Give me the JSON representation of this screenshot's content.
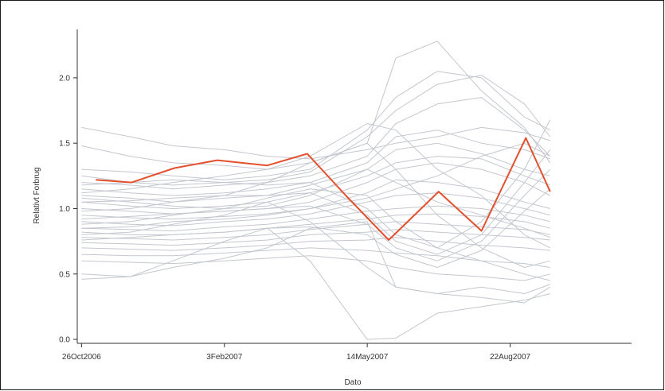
{
  "chart_data": {
    "type": "line",
    "title": "",
    "xlabel": "Dato",
    "ylabel": "Relativt Forbrug",
    "x_ticks": [
      "26Oct2006",
      "3Feb2007",
      "14May2007",
      "22Aug2007"
    ],
    "x_tick_days": [
      0,
      100,
      200,
      300
    ],
    "xlim_days": [
      -3,
      385
    ],
    "y_ticks": [
      "0.0",
      "0.5",
      "1.0",
      "1.5",
      "2.0"
    ],
    "y_tick_values": [
      0.0,
      0.5,
      1.0,
      1.5,
      2.0
    ],
    "ylim": [
      -0.03,
      2.37
    ],
    "grid": false,
    "colors": {
      "highlight": "#e2502e",
      "background_series": "#c3c7ce",
      "axis": "#333333"
    },
    "highlight_series": {
      "name": "",
      "x": [
        10,
        35,
        65,
        95,
        130,
        158,
        185,
        215,
        250,
        280,
        311,
        328
      ],
      "y": [
        1.22,
        1.2,
        1.31,
        1.37,
        1.33,
        1.42,
        1.1,
        0.76,
        1.13,
        0.83,
        1.54,
        1.13
      ]
    },
    "x_grid_days": [
      0,
      34,
      64,
      100,
      130,
      160,
      200,
      220,
      249,
      280,
      310,
      328
    ],
    "background_series": [
      [
        1.62,
        1.55,
        1.48,
        1.45,
        1.4,
        1.38,
        1.45,
        1.5,
        1.55,
        1.62,
        1.58,
        1.52
      ],
      [
        1.48,
        1.4,
        1.35,
        1.33,
        1.3,
        1.35,
        1.5,
        2.15,
        2.28,
        1.9,
        1.62,
        1.35
      ],
      [
        1.3,
        1.28,
        1.25,
        1.22,
        1.25,
        1.3,
        1.6,
        1.85,
        2.05,
        2.0,
        1.7,
        1.6
      ],
      [
        1.25,
        1.2,
        1.18,
        1.2,
        1.22,
        1.28,
        1.55,
        1.75,
        1.95,
        2.02,
        1.8,
        1.55
      ],
      [
        1.2,
        1.18,
        1.15,
        1.18,
        1.2,
        1.25,
        1.4,
        1.65,
        1.8,
        1.85,
        1.6,
        1.4
      ],
      [
        1.15,
        1.12,
        1.1,
        1.12,
        1.15,
        1.2,
        1.35,
        1.55,
        1.6,
        1.5,
        1.45,
        1.38
      ],
      [
        1.1,
        1.08,
        1.05,
        1.08,
        1.1,
        1.18,
        1.3,
        1.45,
        1.5,
        1.42,
        1.3,
        1.25
      ],
      [
        1.05,
        1.02,
        1.0,
        1.02,
        1.05,
        1.12,
        1.25,
        1.35,
        1.4,
        1.38,
        1.25,
        1.18
      ],
      [
        1.0,
        0.98,
        0.96,
        0.98,
        1.0,
        1.05,
        1.2,
        1.3,
        1.35,
        1.3,
        1.2,
        1.1
      ],
      [
        0.95,
        0.93,
        0.92,
        0.94,
        0.96,
        1.0,
        1.12,
        1.22,
        1.2,
        1.15,
        1.05,
        1.0
      ],
      [
        0.9,
        0.88,
        0.87,
        0.9,
        0.92,
        0.96,
        1.05,
        1.1,
        1.12,
        1.08,
        1.0,
        0.95
      ],
      [
        0.85,
        0.84,
        0.83,
        0.86,
        0.88,
        0.92,
        0.98,
        1.0,
        1.02,
        1.0,
        0.95,
        0.9
      ],
      [
        0.82,
        0.8,
        0.8,
        0.82,
        0.85,
        0.88,
        0.92,
        0.95,
        0.96,
        0.94,
        0.9,
        0.85
      ],
      [
        0.78,
        0.77,
        0.76,
        0.78,
        0.8,
        0.84,
        0.88,
        0.9,
        0.88,
        0.86,
        0.84,
        0.8
      ],
      [
        0.74,
        0.73,
        0.72,
        0.74,
        0.76,
        0.8,
        0.82,
        0.84,
        0.82,
        0.8,
        0.78,
        0.76
      ],
      [
        0.7,
        0.69,
        0.68,
        0.7,
        0.72,
        0.75,
        0.76,
        0.78,
        0.75,
        0.72,
        0.7,
        0.68
      ],
      [
        0.65,
        0.64,
        0.64,
        0.66,
        0.68,
        0.7,
        0.68,
        0.66,
        0.64,
        0.6,
        0.58,
        0.55
      ],
      [
        0.6,
        0.59,
        0.58,
        0.6,
        0.62,
        0.64,
        0.6,
        0.55,
        0.5,
        0.48,
        0.45,
        0.5
      ],
      [
        0.5,
        0.48,
        0.55,
        0.62,
        0.7,
        0.85,
        0.9,
        0.4,
        0.35,
        0.32,
        0.28,
        0.4
      ],
      [
        0.46,
        0.48,
        0.6,
        0.75,
        0.85,
        0.6,
        0.0,
        0.01,
        0.2,
        0.25,
        0.3,
        0.35
      ],
      [
        1.12,
        1.15,
        1.2,
        1.25,
        1.3,
        1.4,
        1.65,
        1.6,
        1.3,
        1.1,
        0.8,
        0.7
      ],
      [
        0.98,
        1.0,
        1.05,
        1.1,
        1.2,
        1.35,
        1.5,
        1.3,
        0.95,
        0.7,
        0.55,
        0.6
      ],
      [
        0.88,
        0.9,
        0.95,
        1.0,
        1.08,
        1.15,
        1.1,
        0.9,
        0.7,
        0.6,
        0.5,
        0.45
      ],
      [
        0.8,
        0.82,
        0.88,
        0.95,
        1.05,
        0.9,
        0.55,
        0.4,
        0.35,
        0.4,
        0.35,
        0.42
      ],
      [
        1.18,
        1.2,
        1.22,
        1.2,
        1.18,
        1.2,
        1.0,
        0.8,
        0.7,
        0.9,
        1.3,
        1.68
      ],
      [
        1.05,
        1.06,
        1.08,
        1.1,
        1.1,
        1.12,
        0.95,
        0.75,
        0.65,
        0.8,
        1.2,
        1.45
      ],
      [
        0.92,
        0.94,
        0.96,
        0.98,
        1.0,
        1.02,
        0.88,
        0.7,
        0.6,
        0.75,
        1.1,
        1.3
      ],
      [
        0.76,
        0.78,
        0.8,
        0.82,
        0.85,
        0.86,
        0.8,
        0.65,
        0.55,
        0.68,
        0.98,
        1.15
      ],
      [
        1.08,
        1.05,
        1.02,
        1.0,
        1.02,
        1.1,
        1.3,
        1.2,
        1.05,
        0.95,
        0.85,
        0.78
      ],
      [
        0.85,
        0.86,
        0.9,
        0.92,
        0.95,
        1.0,
        1.08,
        1.15,
        1.25,
        1.4,
        1.5,
        1.4
      ]
    ]
  }
}
